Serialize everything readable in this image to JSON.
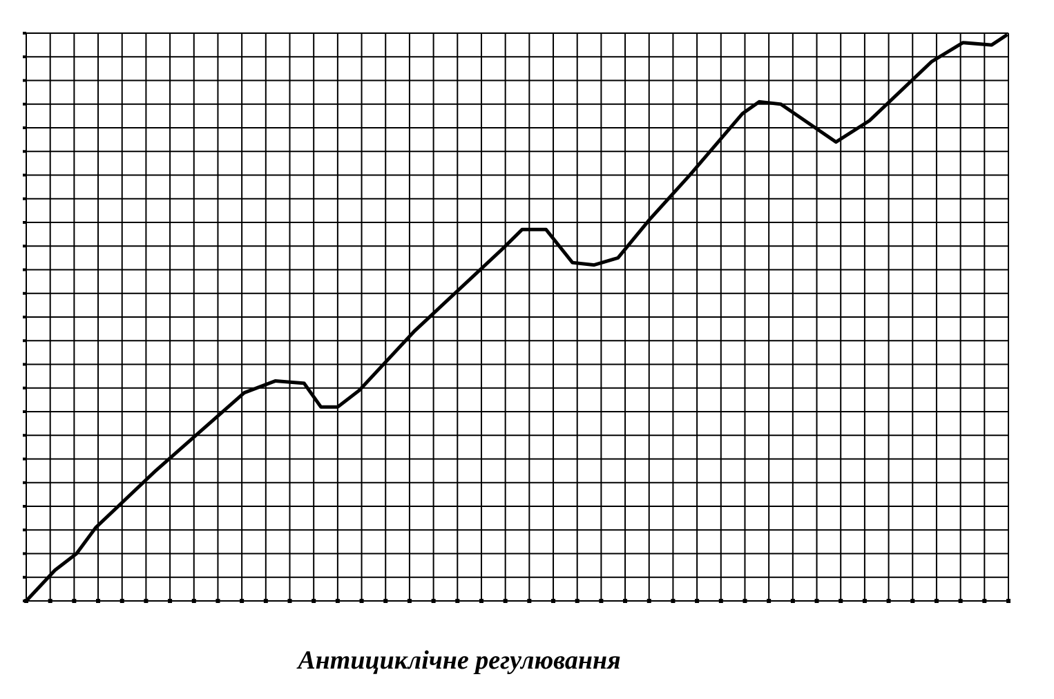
{
  "chart_data": {
    "type": "line",
    "title": "Антициклічне регулювання",
    "x": [
      0,
      1.2,
      2.1,
      2.9,
      5.4,
      9.1,
      10.4,
      11.6,
      12.3,
      13.0,
      13.9,
      16.2,
      19.9,
      20.7,
      21.7,
      22.8,
      23.7,
      24.7,
      26.0,
      27.7,
      29.9,
      30.6,
      31.5,
      33.8,
      35.2,
      37.8,
      39.1,
      40.3,
      40.9
    ],
    "values": [
      0,
      1.3,
      2.0,
      3.1,
      5.5,
      8.8,
      9.3,
      9.2,
      8.2,
      8.2,
      8.9,
      11.4,
      14.9,
      15.7,
      15.7,
      14.3,
      14.2,
      14.5,
      16.1,
      18.0,
      20.6,
      21.1,
      21.0,
      19.4,
      20.3,
      22.8,
      23.6,
      23.5,
      23.9
    ],
    "color": "#000000",
    "xlim": [
      0,
      41
    ],
    "ylim": [
      0,
      24
    ],
    "xticks": [
      0,
      1,
      2,
      3,
      4,
      5,
      6,
      7,
      8,
      9,
      10,
      11,
      12,
      13,
      14,
      15,
      16,
      17,
      18,
      19,
      20,
      21,
      22,
      23,
      24,
      25,
      26,
      27,
      28,
      29,
      30,
      31,
      32,
      33,
      34,
      35,
      36,
      37,
      38,
      39,
      40,
      41
    ],
    "yticks": [
      0,
      1,
      2,
      3,
      4,
      5,
      6,
      7,
      8,
      9,
      10,
      11,
      12,
      13,
      14,
      15,
      16,
      17,
      18,
      19,
      20,
      21,
      22,
      23,
      24
    ],
    "grid": true
  }
}
